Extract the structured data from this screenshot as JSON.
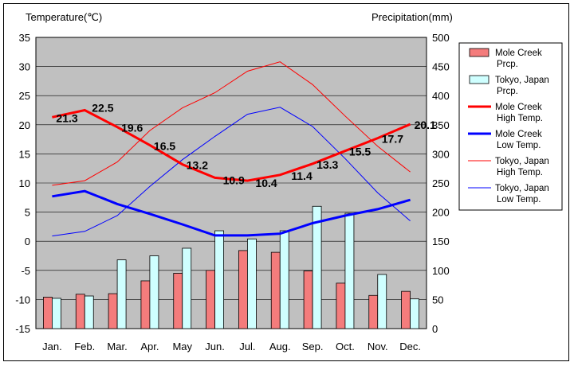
{
  "chart_data": {
    "type": "bar",
    "y_left_label": "Temperature(℃)",
    "y_right_label": "Precipitation(mm)",
    "categories": [
      "Jan.",
      "Feb.",
      "Mar.",
      "Apr.",
      "May",
      "Jun.",
      "Jul.",
      "Aug.",
      "Sep.",
      "Oct.",
      "Nov.",
      "Dec."
    ],
    "ylim_left": [
      -15,
      35
    ],
    "ylim_right": [
      0,
      500
    ],
    "left_ticks": [
      -15,
      -10,
      -5,
      0,
      5,
      10,
      15,
      20,
      25,
      30,
      35
    ],
    "right_ticks": [
      0,
      50,
      100,
      150,
      200,
      250,
      300,
      350,
      400,
      450,
      500
    ],
    "precip_series": [
      {
        "name_lines": [
          "Mole Creek",
          "Prcp."
        ],
        "color": "#f47c7c",
        "values": [
          54,
          59,
          60,
          82,
          95,
          100,
          134,
          131,
          99,
          78,
          57,
          64
        ]
      },
      {
        "name_lines": [
          "Tokyo, Japan",
          "Prcp."
        ],
        "color": "#cfffff",
        "values": [
          52,
          56,
          118,
          125,
          138,
          168,
          154,
          168,
          210,
          198,
          93,
          51
        ]
      }
    ],
    "temp_series": [
      {
        "name_lines": [
          "Mole Creek",
          "High Temp."
        ],
        "color": "#ff0000",
        "width": 3,
        "values": [
          21.3,
          22.5,
          19.6,
          16.5,
          13.2,
          10.9,
          10.4,
          11.4,
          13.3,
          15.5,
          17.7,
          20.1
        ],
        "labels": [
          "21.3",
          "22.5",
          "19.6",
          "16.5",
          "13.2",
          "10.9",
          "10.4",
          "11.4",
          "13.3",
          "15.5",
          "17.7",
          "20.1"
        ]
      },
      {
        "name_lines": [
          "Mole Creek",
          "Low Temp."
        ],
        "color": "#0000ff",
        "width": 3,
        "values": [
          7.7,
          8.6,
          6.4,
          4.7,
          2.9,
          1.0,
          1.0,
          1.3,
          3.1,
          4.4,
          5.5,
          7.1
        ]
      },
      {
        "name_lines": [
          "Tokyo, Japan",
          "High Temp."
        ],
        "color": "#ff0000",
        "width": 1,
        "values": [
          9.6,
          10.4,
          13.6,
          19.0,
          22.9,
          25.5,
          29.2,
          30.8,
          26.9,
          21.5,
          16.3,
          11.9
        ]
      },
      {
        "name_lines": [
          "Tokyo, Japan",
          "Low Temp."
        ],
        "color": "#0000ff",
        "width": 1,
        "values": [
          0.9,
          1.7,
          4.4,
          9.4,
          14.0,
          18.0,
          21.8,
          23.0,
          19.7,
          14.2,
          8.3,
          3.5
        ]
      }
    ],
    "grid": true,
    "legend_position": "right"
  }
}
